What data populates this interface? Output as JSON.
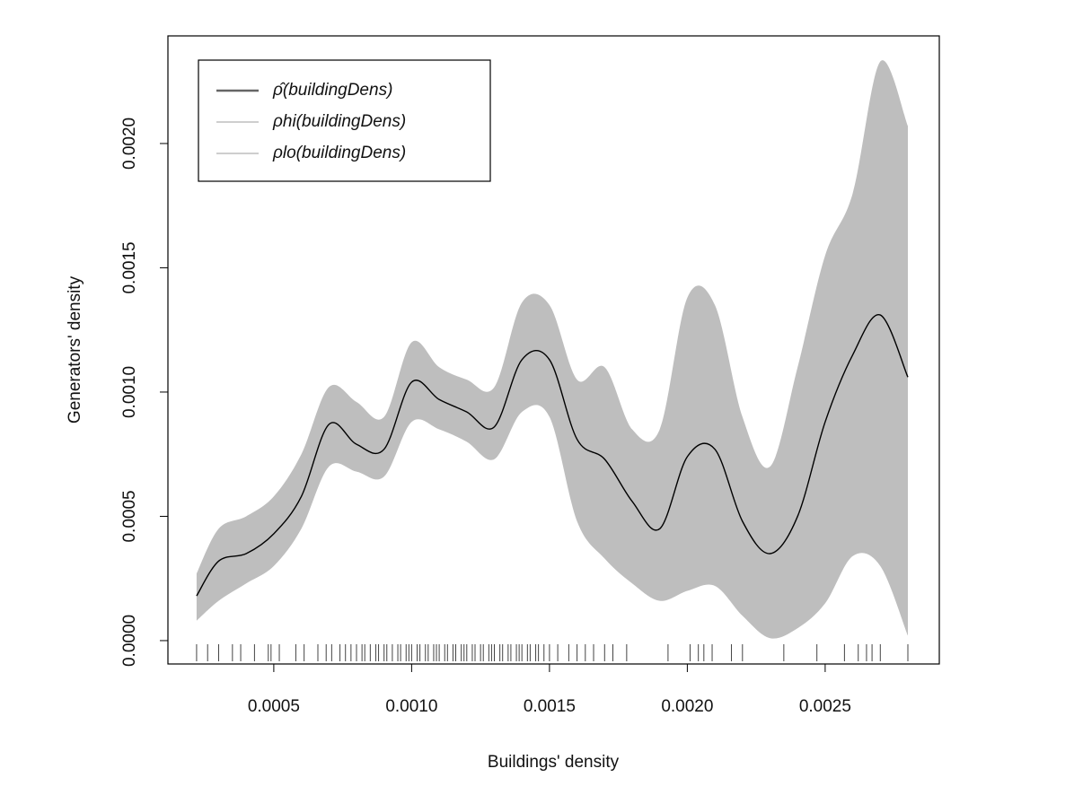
{
  "chart_data": {
    "type": "rhohat",
    "x_label": "Buildings' density",
    "y_label": "Generators' density",
    "xlim": [
      0.000116,
      0.002914
    ],
    "ylim": [
      -9.4e-05,
      0.002433
    ],
    "xticks": [
      0.0005,
      {
        "value": 0.001,
        "label": "0.0010"
      },
      0.0015,
      {
        "value": 0.002,
        "label": "0.0020"
      },
      0.0025
    ],
    "yticks": [
      {
        "value": 0,
        "label": "0.0000"
      },
      0.0005,
      {
        "value": 0.001,
        "label": "0.0010"
      },
      0.0015,
      {
        "value": 0.002,
        "label": "0.0020"
      }
    ],
    "x": [
      0.00022,
      0.0003,
      0.0004,
      0.0005,
      0.0006,
      0.0007,
      0.0008,
      0.0009,
      0.001,
      0.0011,
      0.0012,
      0.0013,
      0.0014,
      0.0015,
      0.0016,
      0.0017,
      0.0018,
      0.0019,
      0.002,
      0.0021,
      0.0022,
      0.0023,
      0.0024,
      0.0025,
      0.0026,
      0.0027,
      0.0028
    ],
    "series": [
      {
        "name": "ρ̂(buildingDens)",
        "color": "#000000",
        "legend_color": "#666666",
        "values": [
          0.00018,
          0.00032,
          0.00035,
          0.00043,
          0.00058,
          0.00087,
          0.00079,
          0.00077,
          0.00104,
          0.00097,
          0.00092,
          0.00086,
          0.00113,
          0.00113,
          0.00081,
          0.00073,
          0.00056,
          0.00045,
          0.00074,
          0.00077,
          0.00048,
          0.00035,
          0.0005,
          0.00088,
          0.00115,
          0.00131,
          0.00106
        ]
      },
      {
        "name": "ρhi(buildingDens)",
        "color": "#bebebe",
        "values": [
          0.00027,
          0.00045,
          0.0005,
          0.00058,
          0.00075,
          0.00102,
          0.00096,
          0.0009,
          0.0012,
          0.0011,
          0.00105,
          0.00102,
          0.00136,
          0.00135,
          0.00105,
          0.0011,
          0.00085,
          0.00085,
          0.00138,
          0.00135,
          0.0009,
          0.0007,
          0.0011,
          0.00155,
          0.0018,
          0.00233,
          0.00207
        ]
      },
      {
        "name": "ρlo(buildingDens)",
        "color": "#bebebe",
        "values": [
          8e-05,
          0.00016,
          0.00023,
          0.0003,
          0.00045,
          0.0007,
          0.00068,
          0.00066,
          0.00088,
          0.00085,
          0.0008,
          0.00073,
          0.00092,
          0.0009,
          0.00048,
          0.00033,
          0.00023,
          0.00016,
          0.0002,
          0.00022,
          0.0001,
          1e-05,
          5e-05,
          0.00015,
          0.00034,
          0.0003,
          2e-05
        ]
      }
    ],
    "band_color": "#bebebe",
    "rug_color": "#444444",
    "rug": [
      0.00022,
      0.00026,
      0.0003,
      0.00035,
      0.00038,
      0.00043,
      0.00048,
      0.00049,
      0.00052,
      0.00058,
      0.00061,
      0.00066,
      0.00069,
      0.00071,
      0.00074,
      0.00076,
      0.00078,
      0.0008,
      0.00082,
      0.00083,
      0.00085,
      0.00087,
      0.00088,
      0.0009,
      0.00091,
      0.00093,
      0.00095,
      0.00096,
      0.00098,
      0.00099,
      0.001,
      0.00102,
      0.00103,
      0.00105,
      0.00106,
      0.00108,
      0.00109,
      0.0011,
      0.00112,
      0.00113,
      0.00115,
      0.00116,
      0.00118,
      0.00119,
      0.0012,
      0.00122,
      0.00123,
      0.00125,
      0.00126,
      0.00128,
      0.00129,
      0.0013,
      0.00132,
      0.00133,
      0.00135,
      0.00136,
      0.00138,
      0.00139,
      0.0014,
      0.00142,
      0.00143,
      0.00145,
      0.00146,
      0.00148,
      0.0015,
      0.00153,
      0.00157,
      0.0016,
      0.00163,
      0.00166,
      0.0017,
      0.00173,
      0.00178,
      0.00193,
      0.00201,
      0.00204,
      0.00206,
      0.00209,
      0.00216,
      0.0022,
      0.00235,
      0.00247,
      0.00257,
      0.00262,
      0.00265,
      0.00267,
      0.0027,
      0.0028
    ]
  }
}
